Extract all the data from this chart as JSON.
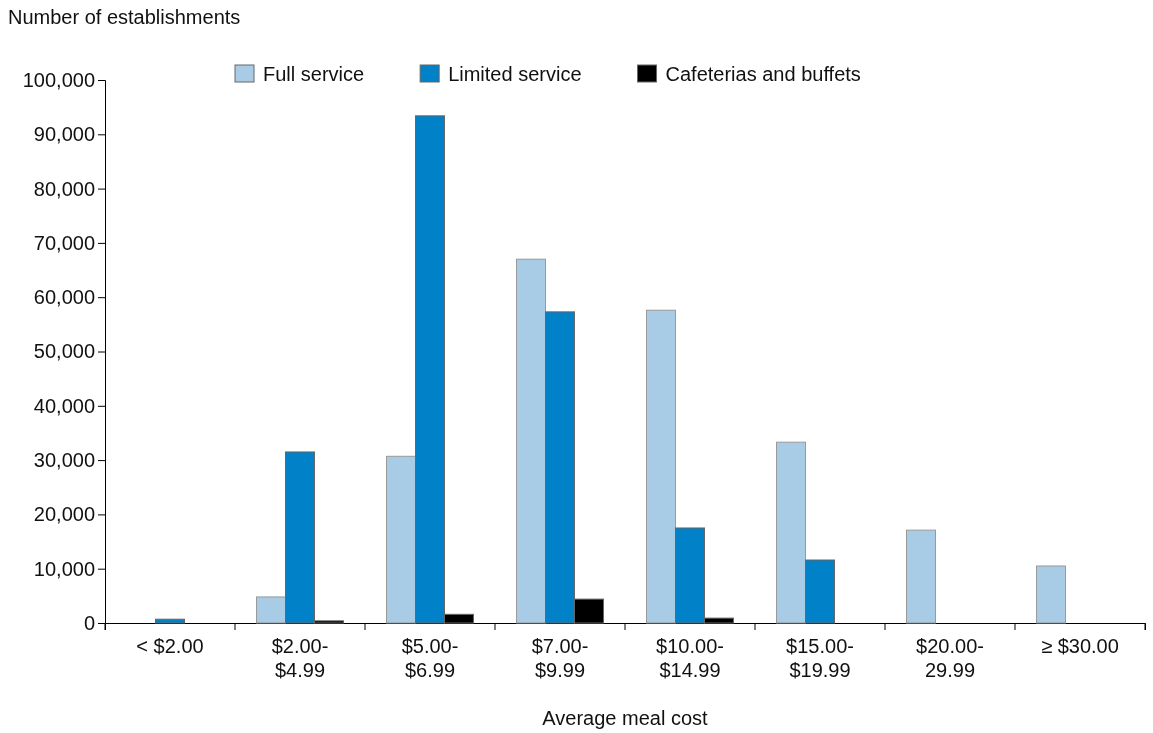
{
  "chart_data": {
    "type": "bar",
    "ylabel": "Number of establishments",
    "xlabel": "Average meal cost",
    "categories": [
      "< $2.00",
      "$2.00-\n$4.99",
      "$5.00-\n$6.99",
      "$7.00-\n$9.99",
      "$10.00-\n$14.99",
      "$15.00-\n$19.99",
      "$20.00-\n29.99",
      "≥ $30.00"
    ],
    "series": [
      {
        "name": "Full service",
        "color": "#a9cce6",
        "values": [
          0,
          4800,
          30700,
          67000,
          57600,
          33300,
          17100,
          10500
        ]
      },
      {
        "name": "Limited service",
        "color": "#0081c8",
        "values": [
          700,
          31500,
          93400,
          57300,
          17500,
          11600,
          0,
          0
        ]
      },
      {
        "name": "Cafeterias and buffets",
        "color": "#000000",
        "values": [
          0,
          400,
          1600,
          4400,
          900,
          0,
          0,
          0
        ]
      }
    ],
    "ylim": [
      0,
      100000
    ],
    "yticks": [
      {
        "value": 0,
        "label": "0"
      },
      {
        "value": 10000,
        "label": "10,000"
      },
      {
        "value": 20000,
        "label": "20,000"
      },
      {
        "value": 30000,
        "label": "30,000"
      },
      {
        "value": 40000,
        "label": "40,000"
      },
      {
        "value": 50000,
        "label": "50,000"
      },
      {
        "value": 60000,
        "label": "60,000"
      },
      {
        "value": 70000,
        "label": "70,000"
      },
      {
        "value": 80000,
        "label": "80,000"
      },
      {
        "value": 90000,
        "label": "90,000"
      },
      {
        "value": 100000,
        "label": "100,000"
      }
    ],
    "grid": false,
    "legend": "top"
  }
}
